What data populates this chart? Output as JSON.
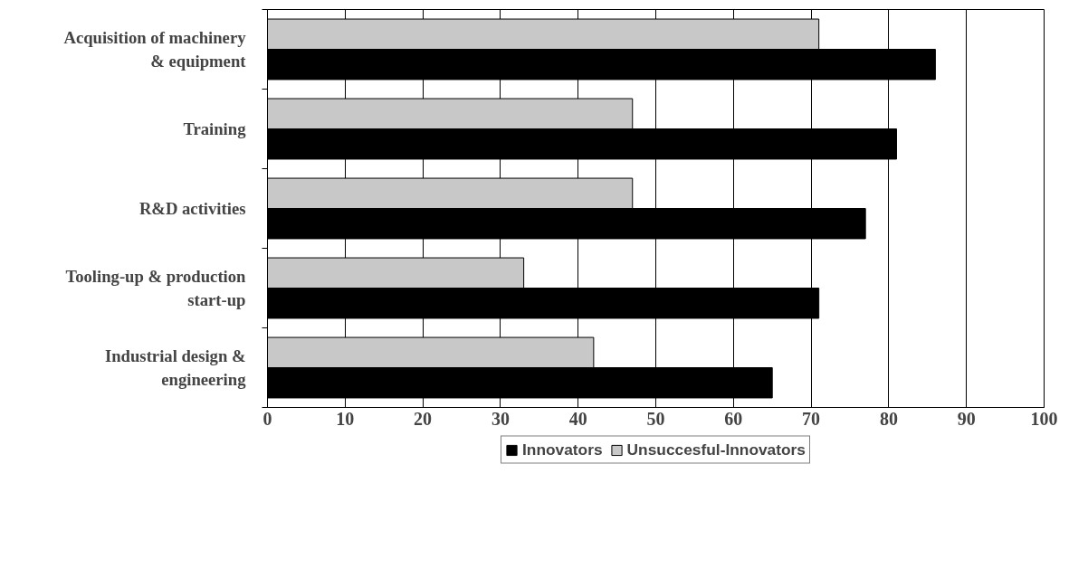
{
  "chart_data": {
    "type": "bar",
    "orientation": "horizontal",
    "categories": [
      "Acquisition of machinery & equipment",
      "Training",
      "R&D activities",
      "Tooling-up & production start-up",
      "Industrial design & engineering"
    ],
    "series": [
      {
        "name": "Innovators",
        "color": "#000000",
        "values": [
          86,
          81,
          77,
          71,
          65
        ]
      },
      {
        "name": "Unsuccesful-Innovators",
        "color": "#c8c8c8",
        "values": [
          71,
          47,
          47,
          33,
          42
        ]
      }
    ],
    "xlim": [
      0,
      100
    ],
    "xticks": [
      0,
      10,
      20,
      30,
      40,
      50,
      60,
      70,
      80,
      90,
      100
    ],
    "grid": "x",
    "legend": "bottom"
  }
}
